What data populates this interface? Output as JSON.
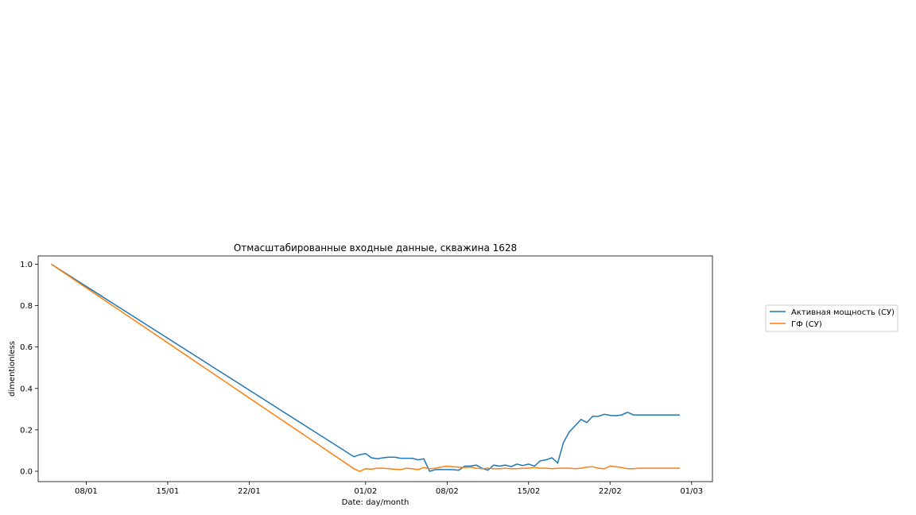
{
  "chart_data": {
    "type": "line",
    "title": "Отмасштабированные входные данные, скважина 1628",
    "xlabel": "Date: day/month",
    "ylabel": "dimentionless",
    "x_format": "date",
    "xlim": [
      "2022-01-03T21:00",
      "2022-03-02T19:00"
    ],
    "ylim": [
      -0.05,
      1.04
    ],
    "x_ticks": [
      {
        "date": "2022-01-08",
        "label": "08/01"
      },
      {
        "date": "2022-01-15",
        "label": "15/01"
      },
      {
        "date": "2022-01-22",
        "label": "22/01"
      },
      {
        "date": "2022-02-01",
        "label": "01/02"
      },
      {
        "date": "2022-02-08",
        "label": "08/02"
      },
      {
        "date": "2022-02-15",
        "label": "15/02"
      },
      {
        "date": "2022-02-22",
        "label": "22/02"
      },
      {
        "date": "2022-03-01",
        "label": "01/03"
      }
    ],
    "y_ticks": [
      {
        "value": 0.0,
        "label": "0.0"
      },
      {
        "value": 0.2,
        "label": "0.2"
      },
      {
        "value": 0.4,
        "label": "0.4"
      },
      {
        "value": 0.6,
        "label": "0.6"
      },
      {
        "value": 0.8,
        "label": "0.8"
      },
      {
        "value": 1.0,
        "label": "1.0"
      }
    ],
    "grid": false,
    "legend": "outside-right",
    "series": [
      {
        "name": "Активная мощность (СУ)",
        "color": "#1f77b4",
        "x": [
          "2022-01-05",
          "2022-01-31",
          "2022-01-31T12:00",
          "2022-02-01",
          "2022-02-01T12:00",
          "2022-02-02",
          "2022-02-02T12:00",
          "2022-02-03",
          "2022-02-03T12:00",
          "2022-02-04",
          "2022-02-04T12:00",
          "2022-02-05",
          "2022-02-05T12:00",
          "2022-02-06",
          "2022-02-06T12:00",
          "2022-02-07",
          "2022-02-08",
          "2022-02-08T12:00",
          "2022-02-09",
          "2022-02-09T12:00",
          "2022-02-10",
          "2022-02-10T12:00",
          "2022-02-11",
          "2022-02-11T12:00",
          "2022-02-12",
          "2022-02-12T12:00",
          "2022-02-13",
          "2022-02-13T12:00",
          "2022-02-14",
          "2022-02-14T12:00",
          "2022-02-15",
          "2022-02-15T12:00",
          "2022-02-16",
          "2022-02-16T12:00",
          "2022-02-17",
          "2022-02-17T12:00",
          "2022-02-18",
          "2022-02-18T12:00",
          "2022-02-19",
          "2022-02-19T12:00",
          "2022-02-20",
          "2022-02-20T12:00",
          "2022-02-21",
          "2022-02-21T12:00",
          "2022-02-22",
          "2022-02-22T12:00",
          "2022-02-23",
          "2022-02-23T12:00",
          "2022-02-24",
          "2022-02-24T12:00",
          "2022-02-25",
          "2022-02-25T12:00",
          "2022-02-26",
          "2022-02-26T12:00",
          "2022-02-27",
          "2022-02-27T12:00",
          "2022-02-28"
        ],
        "y": [
          1.0,
          0.07,
          0.08,
          0.085,
          0.065,
          0.06,
          0.065,
          0.068,
          0.068,
          0.063,
          0.063,
          0.063,
          0.055,
          0.06,
          0.0,
          0.008,
          0.008,
          0.008,
          0.005,
          0.025,
          0.025,
          0.03,
          0.015,
          0.005,
          0.03,
          0.025,
          0.03,
          0.022,
          0.035,
          0.028,
          0.035,
          0.025,
          0.05,
          0.055,
          0.065,
          0.04,
          0.14,
          0.19,
          0.22,
          0.25,
          0.235,
          0.265,
          0.265,
          0.275,
          0.27,
          0.268,
          0.272,
          0.285,
          0.272,
          0.272,
          0.272,
          0.272,
          0.272,
          0.272,
          0.272,
          0.272,
          0.272
        ]
      },
      {
        "name": "ГФ (СУ)",
        "color": "#ff7f0e",
        "x": [
          "2022-01-05",
          "2022-01-31",
          "2022-01-31T12:00",
          "2022-02-01",
          "2022-02-01T12:00",
          "2022-02-02",
          "2022-02-02T12:00",
          "2022-02-03",
          "2022-02-03T12:00",
          "2022-02-04",
          "2022-02-04T12:00",
          "2022-02-05",
          "2022-02-05T12:00",
          "2022-02-06",
          "2022-02-06T12:00",
          "2022-02-07",
          "2022-02-07T12:00",
          "2022-02-08",
          "2022-02-08T12:00",
          "2022-02-09",
          "2022-02-09T12:00",
          "2022-02-10",
          "2022-02-10T12:00",
          "2022-02-11",
          "2022-02-11T12:00",
          "2022-02-12",
          "2022-02-12T12:00",
          "2022-02-13",
          "2022-02-13T12:00",
          "2022-02-14",
          "2022-02-14T12:00",
          "2022-02-15",
          "2022-02-15T12:00",
          "2022-02-16",
          "2022-02-16T12:00",
          "2022-02-17",
          "2022-02-17T12:00",
          "2022-02-18",
          "2022-02-18T12:00",
          "2022-02-19",
          "2022-02-19T12:00",
          "2022-02-20",
          "2022-02-20T12:00",
          "2022-02-21",
          "2022-02-21T12:00",
          "2022-02-22",
          "2022-02-22T12:00",
          "2022-02-23",
          "2022-02-23T12:00",
          "2022-02-24",
          "2022-02-24T12:00",
          "2022-02-25",
          "2022-02-25T12:00",
          "2022-02-26",
          "2022-02-26T12:00",
          "2022-02-27",
          "2022-02-27T12:00",
          "2022-02-28"
        ],
        "y": [
          1.0,
          0.012,
          0.0,
          0.012,
          0.01,
          0.015,
          0.015,
          0.012,
          0.01,
          0.008,
          0.015,
          0.012,
          0.008,
          0.018,
          0.012,
          0.015,
          0.02,
          0.025,
          0.022,
          0.02,
          0.018,
          0.02,
          0.015,
          0.012,
          0.015,
          0.012,
          0.012,
          0.015,
          0.012,
          0.012,
          0.015,
          0.015,
          0.018,
          0.015,
          0.015,
          0.012,
          0.015,
          0.015,
          0.015,
          0.012,
          0.015,
          0.02,
          0.022,
          0.015,
          0.012,
          0.025,
          0.022,
          0.018,
          0.012,
          0.012,
          0.015,
          0.015,
          0.015,
          0.015,
          0.015,
          0.015,
          0.015,
          0.015
        ]
      }
    ]
  }
}
